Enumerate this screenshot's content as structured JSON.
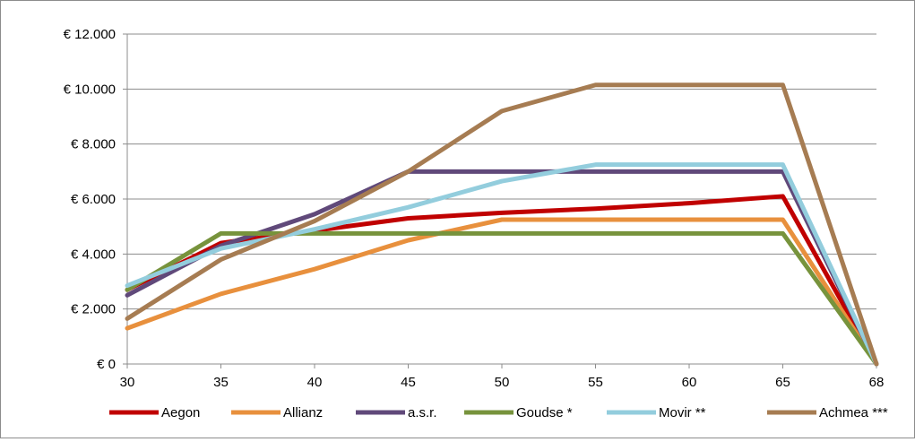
{
  "chart_data": {
    "type": "line",
    "title": "",
    "xlabel": "",
    "ylabel": "",
    "x": [
      "30",
      "35",
      "40",
      "45",
      "50",
      "55",
      "60",
      "65",
      "68"
    ],
    "ylim": [
      0,
      12000
    ],
    "yticks": [
      0,
      2000,
      4000,
      6000,
      8000,
      10000,
      12000
    ],
    "ytick_labels": [
      "€ 0",
      "€ 2.000",
      "€ 4.000",
      "€ 6.000",
      "€ 8.000",
      "€ 10.000",
      "€ 12.000"
    ],
    "grid": "horizontal",
    "legend_position": "bottom",
    "series": [
      {
        "name": "Aegon",
        "color": "#C00000",
        "values": [
          2700,
          4400,
          4850,
          5300,
          5500,
          5650,
          5850,
          6100,
          0
        ]
      },
      {
        "name": "Allianz",
        "color": "#E8903D",
        "values": [
          1300,
          2550,
          3450,
          4500,
          5250,
          5250,
          5250,
          5250,
          0
        ]
      },
      {
        "name": "a.s.r.",
        "color": "#60497A",
        "values": [
          2500,
          4300,
          5450,
          7000,
          7000,
          7000,
          7000,
          7000,
          0
        ]
      },
      {
        "name": "Goudse *",
        "color": "#77933C",
        "values": [
          2700,
          4750,
          4750,
          4750,
          4750,
          4750,
          4750,
          4750,
          0
        ]
      },
      {
        "name": "Movir **",
        "color": "#93CDDD",
        "values": [
          2850,
          4200,
          4900,
          5700,
          6650,
          7250,
          7250,
          7250,
          0
        ]
      },
      {
        "name": "Achmea ***",
        "color": "#A67C52",
        "values": [
          1650,
          3800,
          5200,
          7000,
          9200,
          10150,
          10150,
          10150,
          0
        ]
      }
    ]
  }
}
